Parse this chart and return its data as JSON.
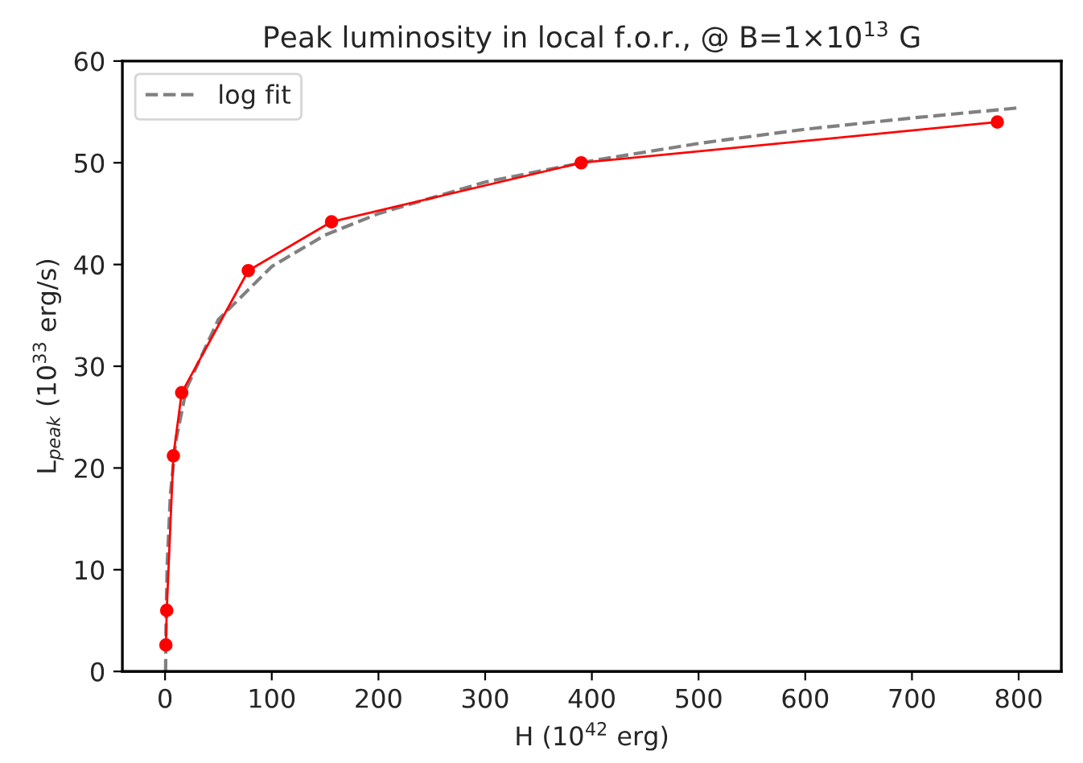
{
  "chart_data": {
    "type": "line",
    "title": "Peak luminosity in local f.o.r., @ B=1×10$^{13}$ G",
    "xlabel": "H (10$^{42}$ erg)",
    "ylabel": "L$_{peak}$ (10$^{33}$ erg/s)",
    "series": [
      {
        "name": "log fit",
        "color": "#808080",
        "line_style": "dashed",
        "marker": "none",
        "x": [
          0.5,
          1,
          2,
          5,
          10,
          20,
          50,
          100,
          150,
          200,
          300,
          400,
          500,
          600,
          700,
          800
        ],
        "values": [
          0,
          5.3,
          10.5,
          17.4,
          22.6,
          27.8,
          34.6,
          39.8,
          42.9,
          45.0,
          48.1,
          50.2,
          51.9,
          53.3,
          54.4,
          55.4
        ]
      },
      {
        "color": "#ff0000",
        "line_style": "solid",
        "marker": "circle",
        "x": [
          0.78,
          1.56,
          7.8,
          15.6,
          78,
          156,
          390,
          780
        ],
        "values": [
          2.6,
          6.0,
          21.2,
          27.4,
          39.4,
          44.2,
          50.0,
          54.0
        ]
      }
    ],
    "xlim": [
      -40,
      840
    ],
    "xticks": [
      0,
      100,
      200,
      300,
      400,
      500,
      600,
      700,
      800
    ],
    "ylim": [
      0,
      60
    ],
    "yticks": [
      0,
      10,
      20,
      30,
      40,
      50,
      60
    ],
    "grid": false,
    "legend": "top left"
  }
}
